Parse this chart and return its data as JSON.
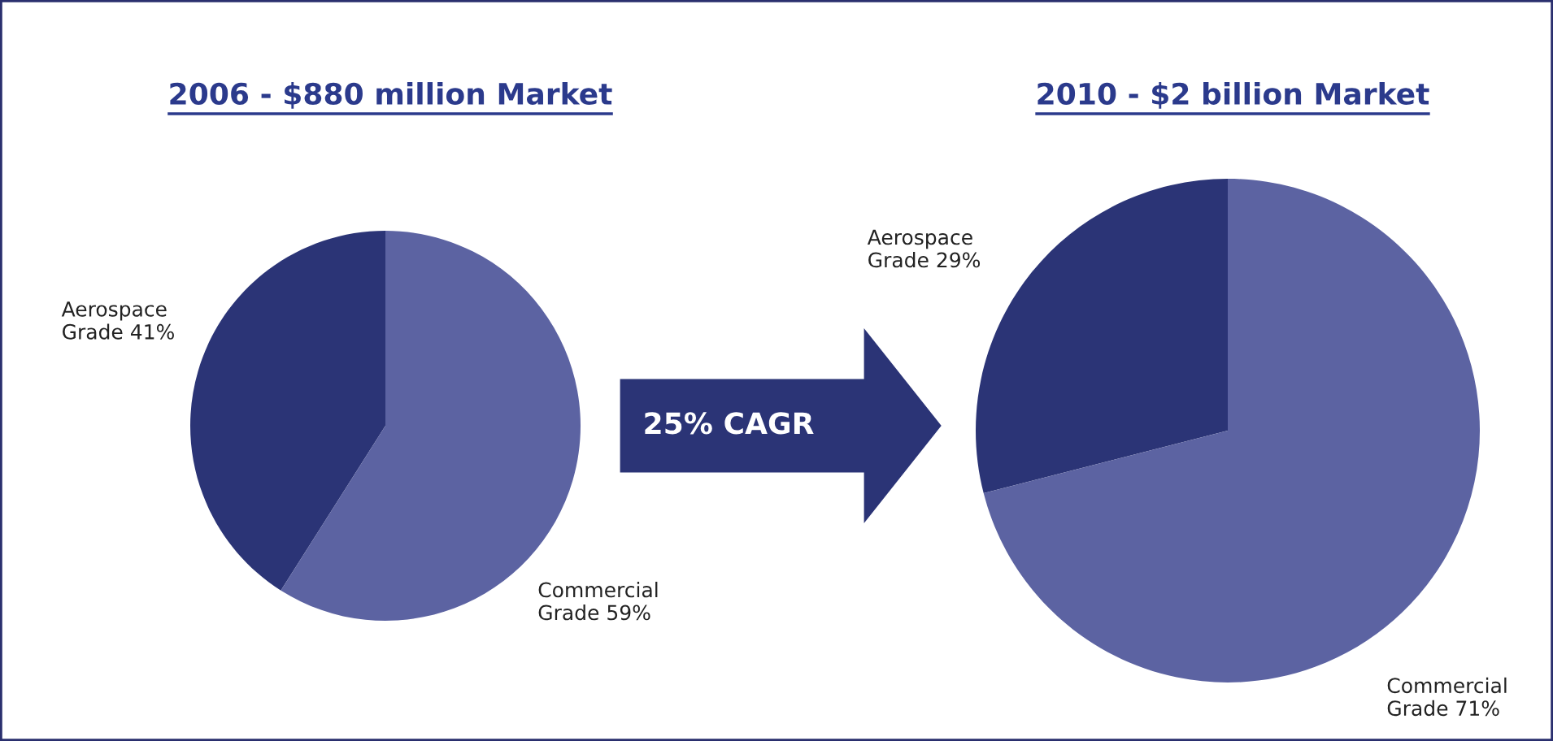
{
  "chart_data": [
    {
      "type": "pie",
      "title": "2006 - $880 million Market",
      "categories": [
        "Aerospace Grade",
        "Commercial Grade"
      ],
      "values": [
        41,
        59
      ],
      "value_labels": [
        "41%",
        "59%"
      ],
      "colors": [
        "#2b3476",
        "#5c63a2"
      ],
      "annotations": [
        "25% CAGR"
      ],
      "legend": false
    },
    {
      "type": "pie",
      "title": "2010 - $2 billion Market",
      "categories": [
        "Aerospace Grade",
        "Commercial Grade"
      ],
      "values": [
        29,
        71
      ],
      "value_labels": [
        "29%",
        "71%"
      ],
      "colors": [
        "#2b3476",
        "#5c63a2"
      ],
      "legend": false
    }
  ]
}
